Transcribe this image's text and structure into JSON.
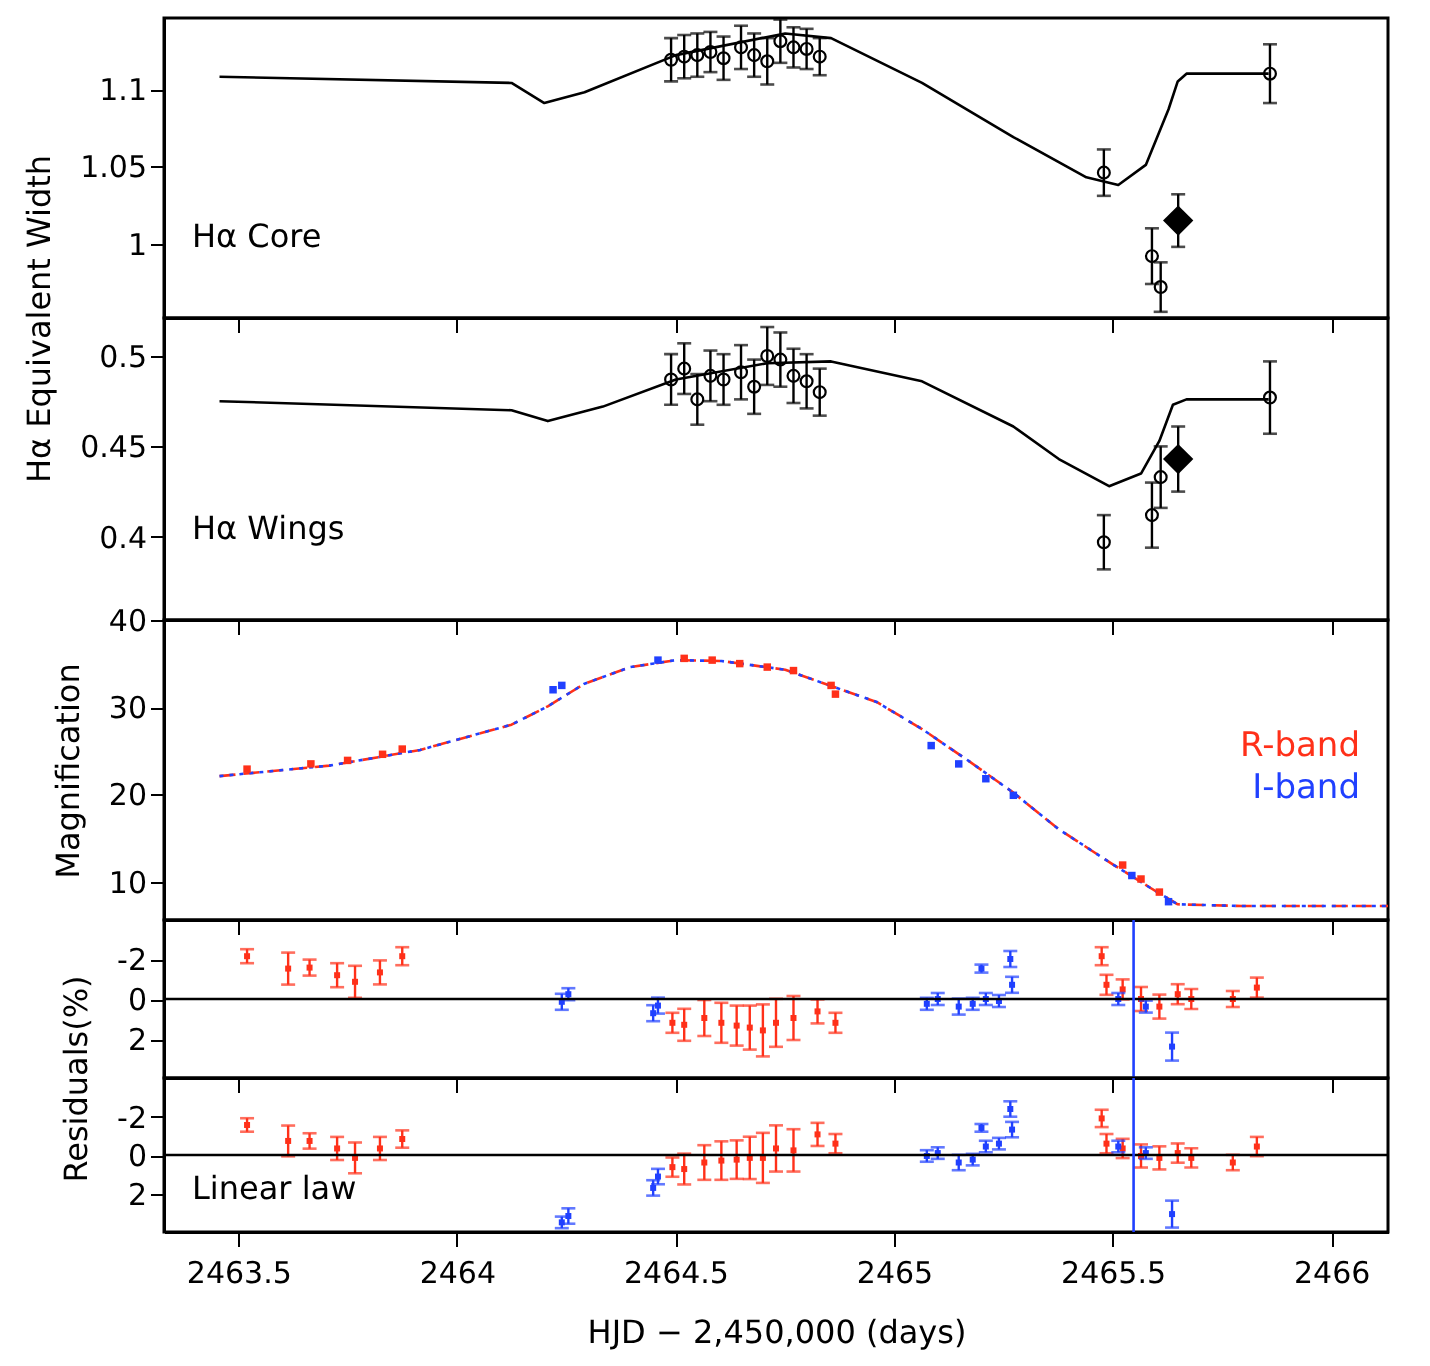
{
  "chart_data": [
    {
      "type": "scatter",
      "ylabel": "Hα Equivalent Width",
      "annotations": [
        "Hα Core"
      ],
      "xlim": [
        2463.33,
        2466.13
      ],
      "xticks": [
        2463.5,
        2464,
        2464.5,
        2465,
        2465.5,
        2466
      ],
      "ylim": [
        0.952,
        1.146
      ],
      "yticks": [
        1,
        1.05,
        1.1
      ],
      "tick_labels": "y",
      "series": [
        {
          "type": "line",
          "color": "#000000",
          "marker": "none",
          "x": [
            2463.457,
            2464.125,
            2464.2,
            2464.292,
            2464.501,
            2464.751,
            2464.856,
            2465.064,
            2465.273,
            2465.44,
            2465.513,
            2465.576,
            2465.628,
            2465.649,
            2465.669,
            2465.857
          ],
          "values": [
            1.108,
            1.104,
            1.091,
            1.098,
            1.122,
            1.136,
            1.133,
            1.104,
            1.069,
            1.043,
            1.038,
            1.051,
            1.087,
            1.105,
            1.11,
            1.11
          ]
        },
        {
          "color": "#000000",
          "marker": "circle",
          "x": [
            2464.49,
            2464.52,
            2464.55,
            2464.58,
            2464.61,
            2464.65,
            2464.68,
            2464.71,
            2464.74,
            2464.77,
            2464.8,
            2464.83,
            2465.48,
            2465.59,
            2465.61,
            2465.86
          ],
          "values": [
            1.119,
            1.121,
            1.122,
            1.124,
            1.12,
            1.127,
            1.122,
            1.118,
            1.131,
            1.127,
            1.126,
            1.121,
            1.046,
            0.992,
            0.972,
            1.11
          ],
          "errors": [
            0.014,
            0.014,
            0.014,
            0.013,
            0.014,
            0.014,
            0.014,
            0.015,
            0.014,
            0.013,
            0.013,
            0.012,
            0.015,
            0.018,
            0.016,
            0.019
          ]
        },
        {
          "color": "#000000",
          "marker": "diamond",
          "x": [
            2465.65
          ],
          "values": [
            1.015
          ],
          "errors": [
            0.017
          ]
        }
      ]
    },
    {
      "type": "scatter",
      "annotations": [
        "Hα Wings"
      ],
      "xlim": [
        2463.33,
        2466.13
      ],
      "xticks": [
        2463.5,
        2464,
        2464.5,
        2465,
        2465.5,
        2466
      ],
      "ylim": [
        0.354,
        0.521
      ],
      "yticks": [
        0.4,
        0.45,
        0.5
      ],
      "tick_labels": "y",
      "series": [
        {
          "type": "line",
          "color": "#000000",
          "marker": "none",
          "x": [
            2463.457,
            2464.125,
            2464.208,
            2464.334,
            2464.501,
            2464.71,
            2464.856,
            2465.064,
            2465.273,
            2465.377,
            2465.492,
            2465.565,
            2465.607,
            2465.638,
            2465.669,
            2465.857
          ],
          "values": [
            0.475,
            0.47,
            0.464,
            0.472,
            0.487,
            0.496,
            0.497,
            0.486,
            0.461,
            0.443,
            0.428,
            0.435,
            0.453,
            0.473,
            0.476,
            0.476
          ]
        },
        {
          "color": "#000000",
          "marker": "circle",
          "x": [
            2464.49,
            2464.52,
            2464.55,
            2464.58,
            2464.61,
            2464.65,
            2464.68,
            2464.71,
            2464.74,
            2464.77,
            2464.8,
            2464.83,
            2465.48,
            2465.59,
            2465.61,
            2465.86
          ],
          "values": [
            0.487,
            0.493,
            0.476,
            0.489,
            0.487,
            0.491,
            0.483,
            0.5,
            0.498,
            0.489,
            0.486,
            0.48,
            0.397,
            0.412,
            0.433,
            0.477
          ],
          "errors": [
            0.014,
            0.014,
            0.014,
            0.014,
            0.014,
            0.015,
            0.015,
            0.016,
            0.015,
            0.015,
            0.015,
            0.013,
            0.015,
            0.018,
            0.017,
            0.02
          ]
        },
        {
          "color": "#000000",
          "marker": "diamond",
          "x": [
            2465.65
          ],
          "values": [
            0.443
          ],
          "errors": [
            0.018
          ]
        }
      ]
    },
    {
      "type": "scatter",
      "ylabel": "Magnification",
      "xlim": [
        2463.33,
        2466.13
      ],
      "xticks": [
        2463.5,
        2464,
        2464.5,
        2465,
        2465.5,
        2466
      ],
      "ylim": [
        5.6,
        40
      ],
      "yticks": [
        10,
        20,
        30,
        40
      ],
      "tick_labels": "y",
      "series": [
        {
          "type": "line",
          "color": "#ff3019",
          "line_style": "dashed",
          "marker": "none",
          "x": [
            2463.457,
            2463.708,
            2463.916,
            2464.125,
            2464.208,
            2464.292,
            2464.397,
            2464.501,
            2464.605,
            2464.751,
            2464.96,
            2465.064,
            2465.169,
            2465.273,
            2465.377,
            2465.503,
            2465.586,
            2465.649,
            2465.795,
            2466.13
          ],
          "values": [
            22.1,
            23.3,
            25.1,
            28.0,
            30.1,
            32.7,
            34.6,
            35.4,
            35.3,
            34.3,
            30.6,
            27.5,
            23.9,
            20.2,
            16.0,
            11.9,
            9.3,
            7.4,
            7.2,
            7.2
          ]
        },
        {
          "type": "line",
          "color": "#2040ff",
          "line_style": "dotted",
          "marker": "none",
          "x": [
            2463.457,
            2463.708,
            2463.916,
            2464.125,
            2464.208,
            2464.292,
            2464.397,
            2464.501,
            2464.605,
            2464.751,
            2464.96,
            2465.064,
            2465.169,
            2465.273,
            2465.377,
            2465.503,
            2465.586,
            2465.649,
            2465.795,
            2466.13
          ],
          "values": [
            22.1,
            23.3,
            25.1,
            28.0,
            30.1,
            32.7,
            34.6,
            35.4,
            35.3,
            34.3,
            30.6,
            27.5,
            23.9,
            20.2,
            16.0,
            11.9,
            9.3,
            7.4,
            7.2,
            7.2
          ]
        },
        {
          "name": "R-band",
          "color": "#ff3019",
          "marker": "square",
          "x": [
            2463.52,
            2463.666,
            2463.75,
            2463.83,
            2463.875,
            2464.52,
            2464.584,
            2464.647,
            2464.71,
            2464.77,
            2464.856,
            2464.866,
            2465.523,
            2465.565,
            2465.607
          ],
          "values": [
            22.9,
            23.5,
            23.9,
            24.6,
            25.2,
            35.6,
            35.4,
            35.0,
            34.6,
            34.2,
            32.5,
            31.5,
            11.9,
            10.3,
            8.8
          ]
        },
        {
          "name": "I-band",
          "color": "#2040ff",
          "marker": "square",
          "x": [
            2464.22,
            2464.24,
            2464.46,
            2465.085,
            2465.148,
            2465.21,
            2465.273,
            2465.544,
            2465.628
          ],
          "values": [
            32.0,
            32.5,
            35.4,
            25.6,
            23.5,
            21.8,
            19.9,
            10.7,
            7.7
          ]
        }
      ]
    },
    {
      "type": "scatter",
      "ylabel": "Residuals(%)",
      "xlim": [
        2463.33,
        2466.13
      ],
      "xticks": [
        2463.5,
        2464,
        2464.5,
        2465,
        2465.5,
        2466
      ],
      "ylim": [
        3.95,
        -3.95
      ],
      "yticks": [
        -2,
        0,
        2
      ],
      "tick_labels": "y",
      "ref_lines": [
        {
          "axis": "y",
          "value": 0,
          "color": "#000000"
        },
        {
          "axis": "x",
          "value": 2465.548,
          "color": "#2040ff"
        }
      ],
      "series": [
        {
          "color": "#ff3019",
          "marker": "square",
          "x": [
            2463.52,
            2463.614,
            2463.663,
            2463.726,
            2463.767,
            2463.824,
            2463.875,
            2464.493,
            2464.52,
            2464.566,
            2464.605,
            2464.64,
            2464.67,
            2464.7,
            2464.73,
            2464.77,
            2464.825,
            2464.866,
            2465.475,
            2465.486,
            2465.523,
            2465.565,
            2465.607,
            2465.649,
            2465.68,
            2465.775,
            2465.83
          ],
          "values": [
            -2.14,
            -1.52,
            -1.57,
            -1.19,
            -0.86,
            -1.33,
            -2.14,
            1.19,
            1.29,
            0.95,
            1.19,
            1.33,
            1.43,
            1.57,
            1.19,
            0.95,
            0.62,
            1.19,
            -2.14,
            -0.71,
            -0.48,
            0,
            0.38,
            -0.24,
            0,
            0,
            -0.57
          ],
          "errors": [
            0.35,
            0.8,
            0.4,
            0.6,
            0.8,
            0.6,
            0.45,
            0.5,
            0.8,
            0.9,
            1.0,
            1.0,
            1.1,
            1.3,
            1.2,
            1.1,
            0.6,
            0.5,
            0.45,
            0.5,
            0.5,
            0.6,
            0.6,
            0.5,
            0.5,
            0.4,
            0.5
          ]
        },
        {
          "color": "#2040ff",
          "marker": "square",
          "x": [
            2464.24,
            2464.255,
            2464.449,
            2464.46,
            2465.075,
            2465.1,
            2465.148,
            2465.18,
            2465.21,
            2465.2,
            2465.24,
            2465.266,
            2465.27,
            2465.513,
            2465.576,
            2465.636
          ],
          "values": [
            0.14,
            -0.24,
            0.71,
            0.33,
            0.24,
            0,
            0.38,
            0.24,
            0,
            -1.52,
            0.1,
            -2.0,
            -0.71,
            0,
            0.38,
            2.38
          ],
          "errors": [
            0.4,
            0.3,
            0.4,
            0.4,
            0.3,
            0.3,
            0.4,
            0.3,
            0.3,
            0.2,
            0.3,
            0.4,
            0.4,
            0.3,
            0.3,
            0.7
          ]
        }
      ]
    },
    {
      "type": "scatter",
      "xlabel": "HJD − 2,450,000 (days)",
      "annotations": [
        "Linear law"
      ],
      "xlim": [
        2463.33,
        2466.13
      ],
      "xticks": [
        2463.5,
        2464,
        2464.5,
        2465,
        2465.5,
        2466
      ],
      "ylim": [
        4,
        -4
      ],
      "yticks": [
        -2,
        0,
        2
      ],
      "ref_lines": [
        {
          "axis": "y",
          "value": 0,
          "color": "#000000"
        },
        {
          "axis": "x",
          "value": 2465.548,
          "color": "#2040ff"
        }
      ],
      "series": [
        {
          "color": "#ff3019",
          "marker": "square",
          "x": [
            2463.52,
            2463.614,
            2463.663,
            2463.726,
            2463.767,
            2463.824,
            2463.875,
            2464.493,
            2464.52,
            2464.566,
            2464.605,
            2464.64,
            2464.67,
            2464.7,
            2464.73,
            2464.77,
            2464.825,
            2464.866,
            2465.475,
            2465.486,
            2465.523,
            2465.565,
            2465.607,
            2465.649,
            2465.68,
            2465.775,
            2465.83
          ],
          "values": [
            -1.56,
            -0.73,
            -0.73,
            -0.34,
            0.15,
            -0.34,
            -0.83,
            0.63,
            0.73,
            0.39,
            0.29,
            0.24,
            0.15,
            0.15,
            -0.34,
            -0.24,
            -1.07,
            -0.59,
            -1.9,
            -0.59,
            -0.34,
            0.05,
            0.15,
            -0.1,
            0.15,
            0.39,
            -0.44
          ],
          "errors": [
            0.35,
            0.8,
            0.4,
            0.6,
            0.8,
            0.6,
            0.45,
            0.5,
            0.8,
            0.9,
            1.0,
            1.0,
            1.1,
            1.3,
            1.2,
            1.1,
            0.6,
            0.5,
            0.45,
            0.5,
            0.5,
            0.6,
            0.6,
            0.5,
            0.5,
            0.4,
            0.5
          ]
        },
        {
          "color": "#2040ff",
          "marker": "square",
          "x": [
            2464.24,
            2464.255,
            2464.449,
            2464.46,
            2465.075,
            2465.1,
            2465.148,
            2465.18,
            2465.21,
            2465.2,
            2465.24,
            2465.266,
            2465.27,
            2465.513,
            2465.576,
            2465.636
          ],
          "values": [
            3.5,
            3.17,
            1.71,
            1.12,
            0.05,
            -0.1,
            0.39,
            0.24,
            -0.44,
            -1.41,
            -0.59,
            -2.39,
            -1.32,
            -0.44,
            -0.1,
            3.07
          ],
          "errors": [
            0.3,
            0.4,
            0.4,
            0.4,
            0.3,
            0.3,
            0.4,
            0.3,
            0.3,
            0.2,
            0.3,
            0.4,
            0.4,
            0.3,
            0.3,
            0.7
          ]
        }
      ]
    }
  ]
}
